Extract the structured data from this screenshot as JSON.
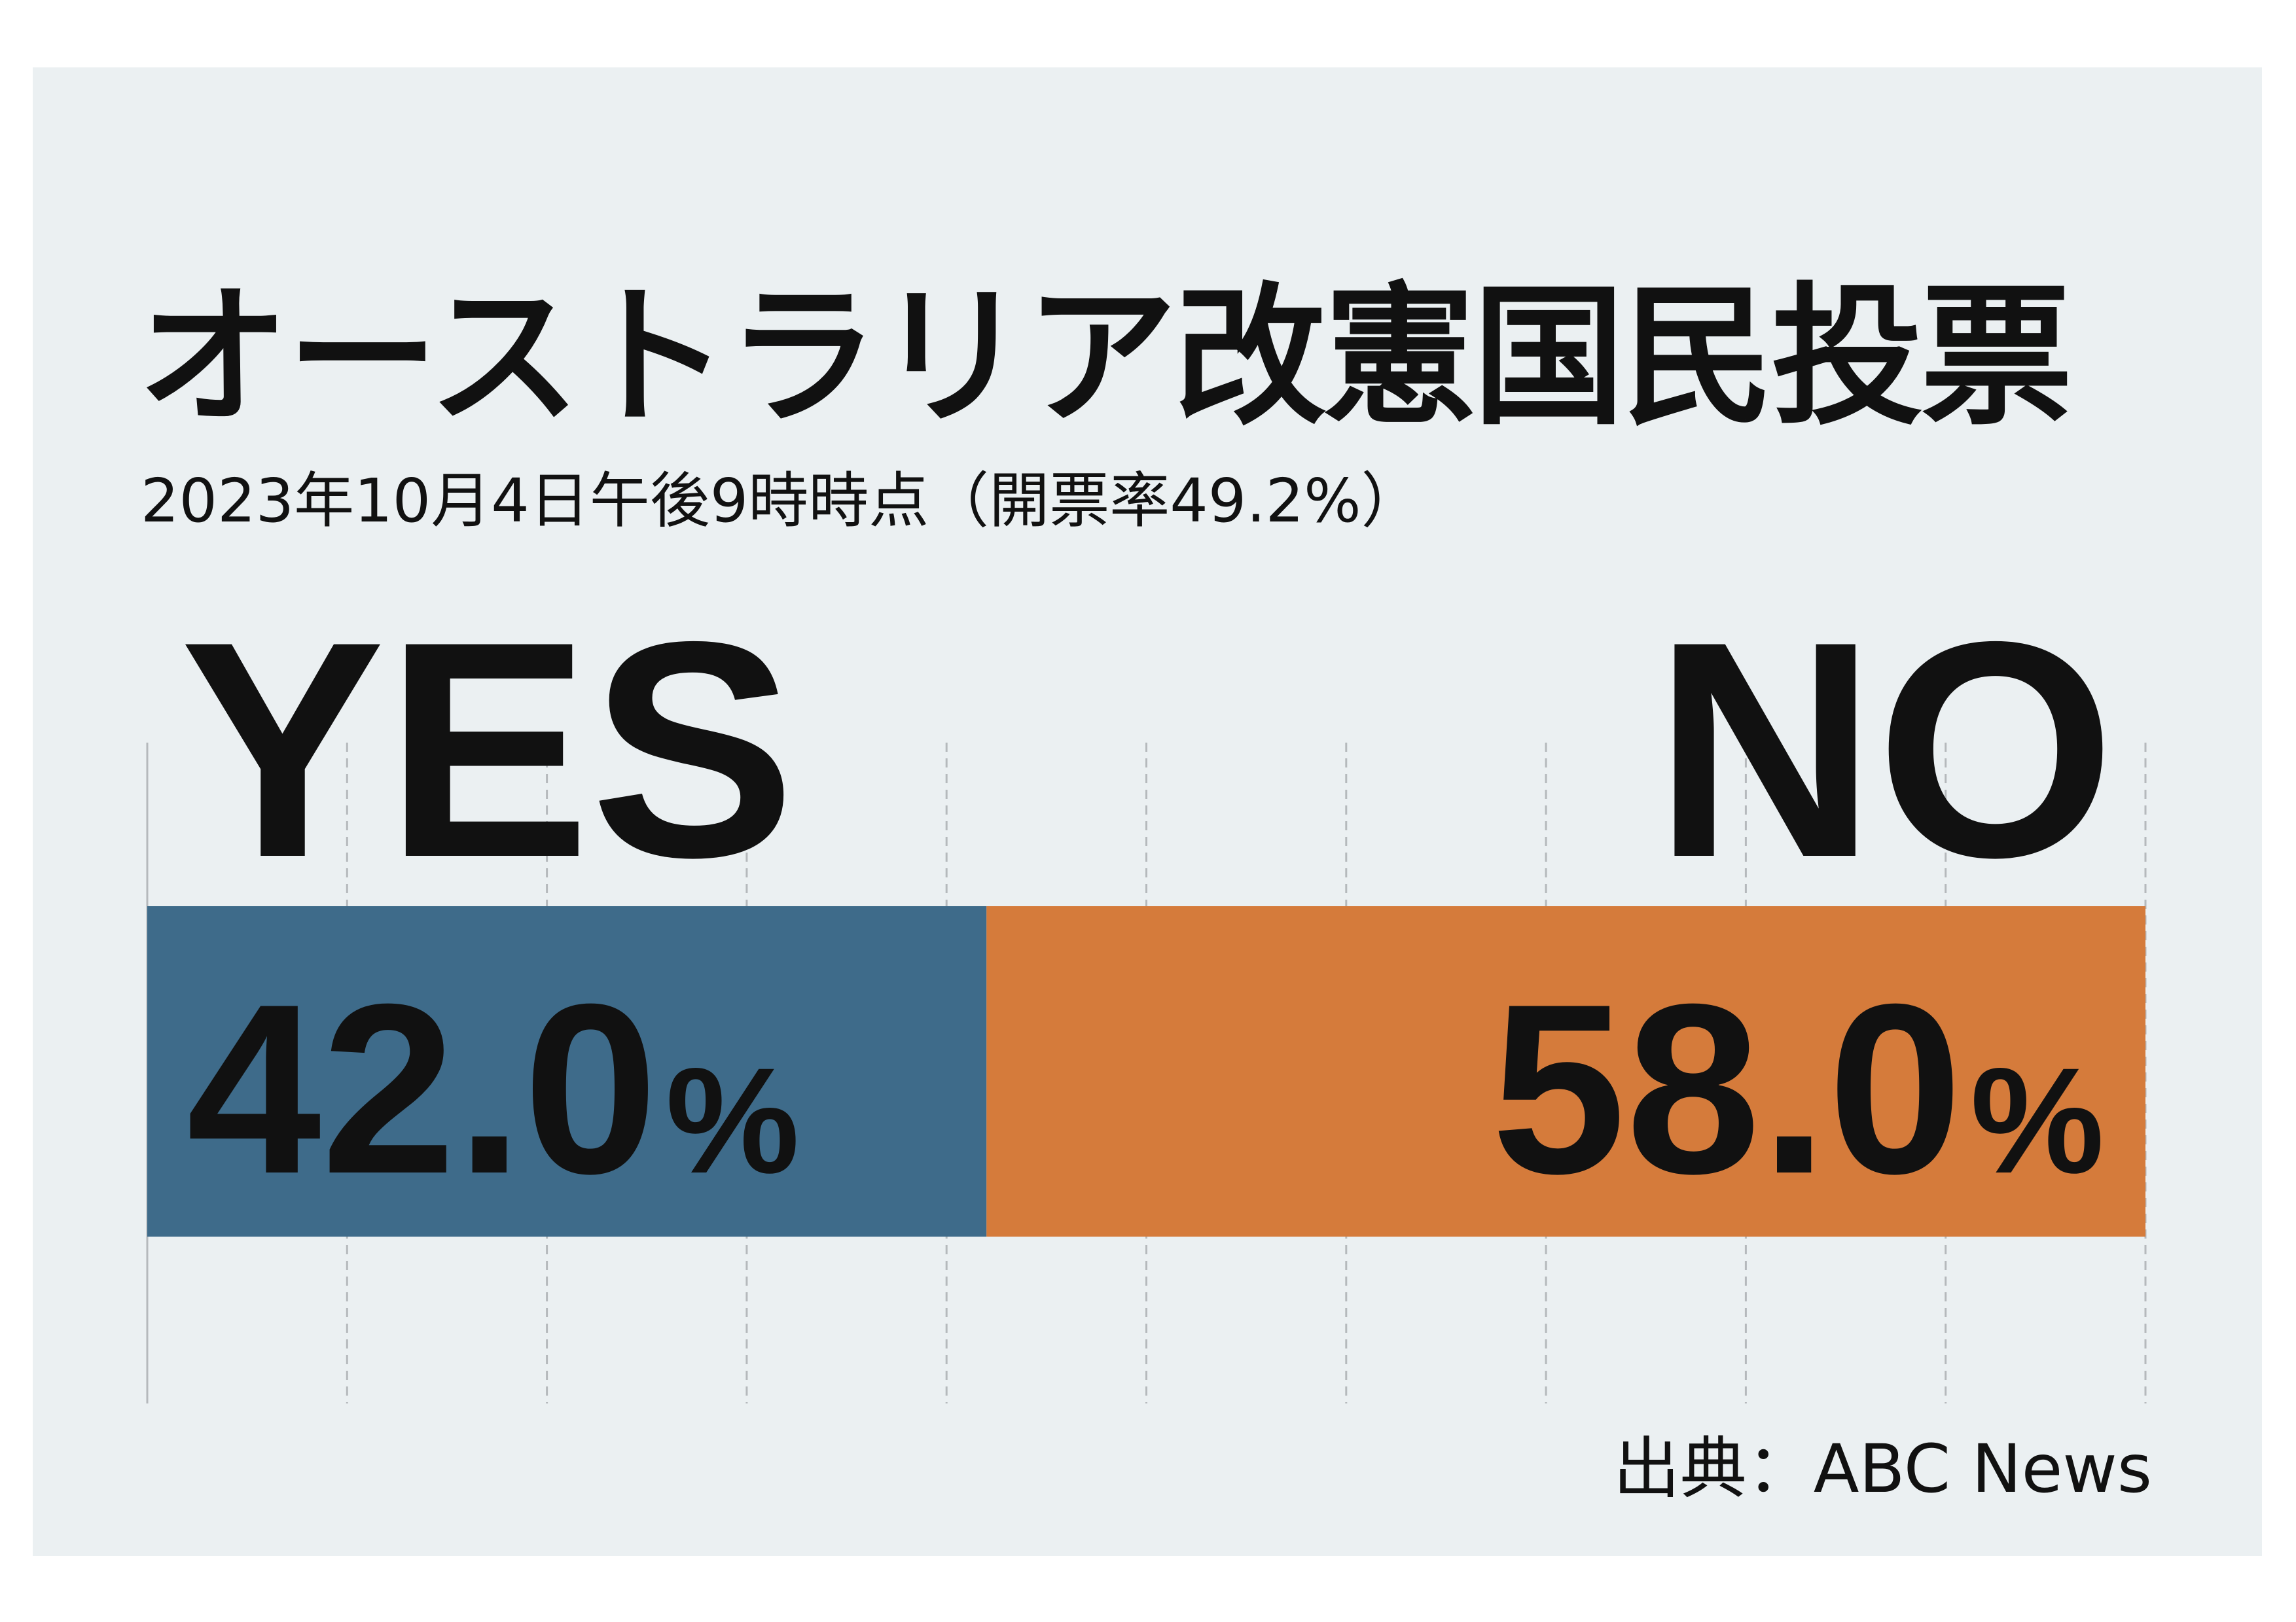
{
  "chart_data": {
    "type": "bar",
    "orientation": "horizontal-stacked",
    "title": "オーストラリア改憲国民投票",
    "subtitle": "2023年10月4日午後9時時点（開票率49.2%）",
    "categories": [
      "YES",
      "NO"
    ],
    "values": [
      42.0,
      58.0
    ],
    "value_labels": [
      "42.0",
      "58.0"
    ],
    "unit": "%",
    "xlim": [
      0,
      100
    ],
    "grid": true,
    "gridline_style": "dashed",
    "colors": [
      "#3e6b8a",
      "#d57b3b"
    ],
    "source": "出典：ABC News"
  }
}
